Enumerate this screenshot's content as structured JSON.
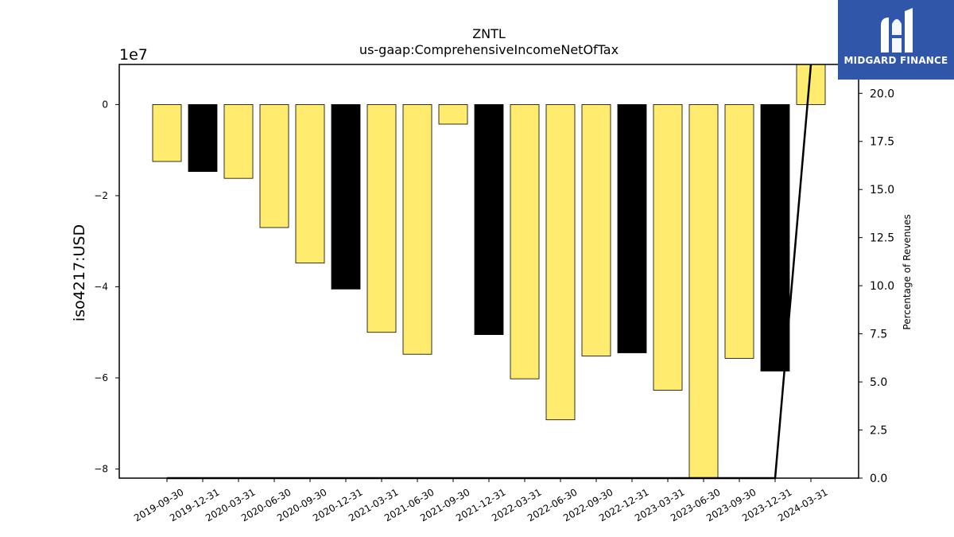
{
  "chart_data": {
    "type": "bar",
    "title": "ZNTL",
    "subtitle": "us-gaap:ComprehensiveIncomeNetOfTax",
    "ylabel": "iso4217:USD",
    "y2label": "Percentage of Revenues",
    "offset_label": "1e7",
    "categories": [
      "2019-09-30",
      "2019-12-31",
      "2020-03-31",
      "2020-06-30",
      "2020-09-30",
      "2020-12-31",
      "2021-03-31",
      "2021-06-30",
      "2021-09-30",
      "2021-12-31",
      "2022-03-31",
      "2022-06-30",
      "2022-09-30",
      "2022-12-31",
      "2023-03-31",
      "2023-06-30",
      "2023-09-30",
      "2023-12-31",
      "2024-03-31"
    ],
    "series": [
      {
        "values": [
          -12500000,
          -14700000,
          -16200000,
          -27000000,
          -34800000,
          -40500000,
          -50000000,
          -54800000,
          -4300000,
          -50500000,
          -60200000,
          -69200000,
          -55200000,
          -54500000,
          -62700000,
          -82000000,
          -55700000,
          -58500000,
          9000000
        ],
        "bar_colors": [
          "#ffeb6e",
          "#000000",
          "#ffeb6e",
          "#ffeb6e",
          "#ffeb6e",
          "#000000",
          "#ffeb6e",
          "#ffeb6e",
          "#ffeb6e",
          "#000000",
          "#ffeb6e",
          "#ffeb6e",
          "#ffeb6e",
          "#000000",
          "#ffeb6e",
          "#ffeb6e",
          "#ffeb6e",
          "#000000",
          "#ffeb6e"
        ]
      },
      {
        "axis": "right",
        "type": "line",
        "values": [
          0,
          0,
          0,
          0,
          0,
          0,
          0,
          0,
          0,
          0,
          0,
          0,
          0,
          0,
          0,
          0,
          0,
          0,
          21.5
        ]
      }
    ],
    "y_ticks": [
      0,
      -2,
      -4,
      -6,
      -8
    ],
    "y2_ticks": [
      "0.0",
      "2.5",
      "5.0",
      "7.5",
      "10.0",
      "12.5",
      "15.0",
      "17.5",
      "20.0"
    ],
    "ylim": [
      -82000000,
      8800000
    ],
    "y2lim": [
      0,
      21.5
    ],
    "grid": false,
    "colors": {
      "yellow": "#ffeb6e",
      "black": "#000000"
    }
  },
  "logo": {
    "text": "MIDGARD FINANCE",
    "bg": "#2f56a8"
  }
}
